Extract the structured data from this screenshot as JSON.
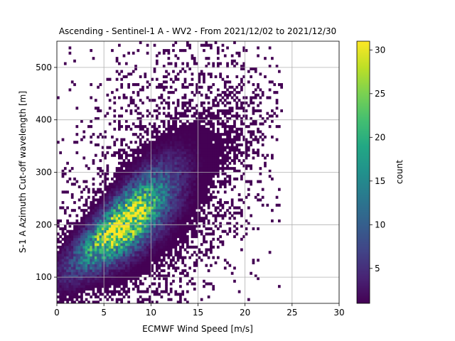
{
  "chart_data": {
    "type": "heatmap",
    "title": "Ascending - Sentinel-1 A - WV2 - From 2021/12/02 to 2021/12/30",
    "xlabel": "ECMWF Wind Speed [m/s]",
    "ylabel": "S-1 A Azimuth Cut-off wavelength [m]",
    "xlim": [
      0,
      30
    ],
    "ylim": [
      50,
      550
    ],
    "xticks": [
      0,
      5,
      10,
      15,
      20,
      25,
      30
    ],
    "yticks": [
      100,
      200,
      300,
      400,
      500
    ],
    "grid": true,
    "colorbar": {
      "label": "count",
      "range": [
        1,
        31
      ],
      "ticks": [
        5,
        10,
        15,
        20,
        25,
        30
      ],
      "colormap": "viridis"
    },
    "density_model": {
      "peak_x": 7.0,
      "peak_y": 200,
      "peak_count": 31,
      "trend_slope_m_per_ms": 13.5,
      "x_spread": 3.2,
      "y_spread_around_trend": 30
    }
  }
}
